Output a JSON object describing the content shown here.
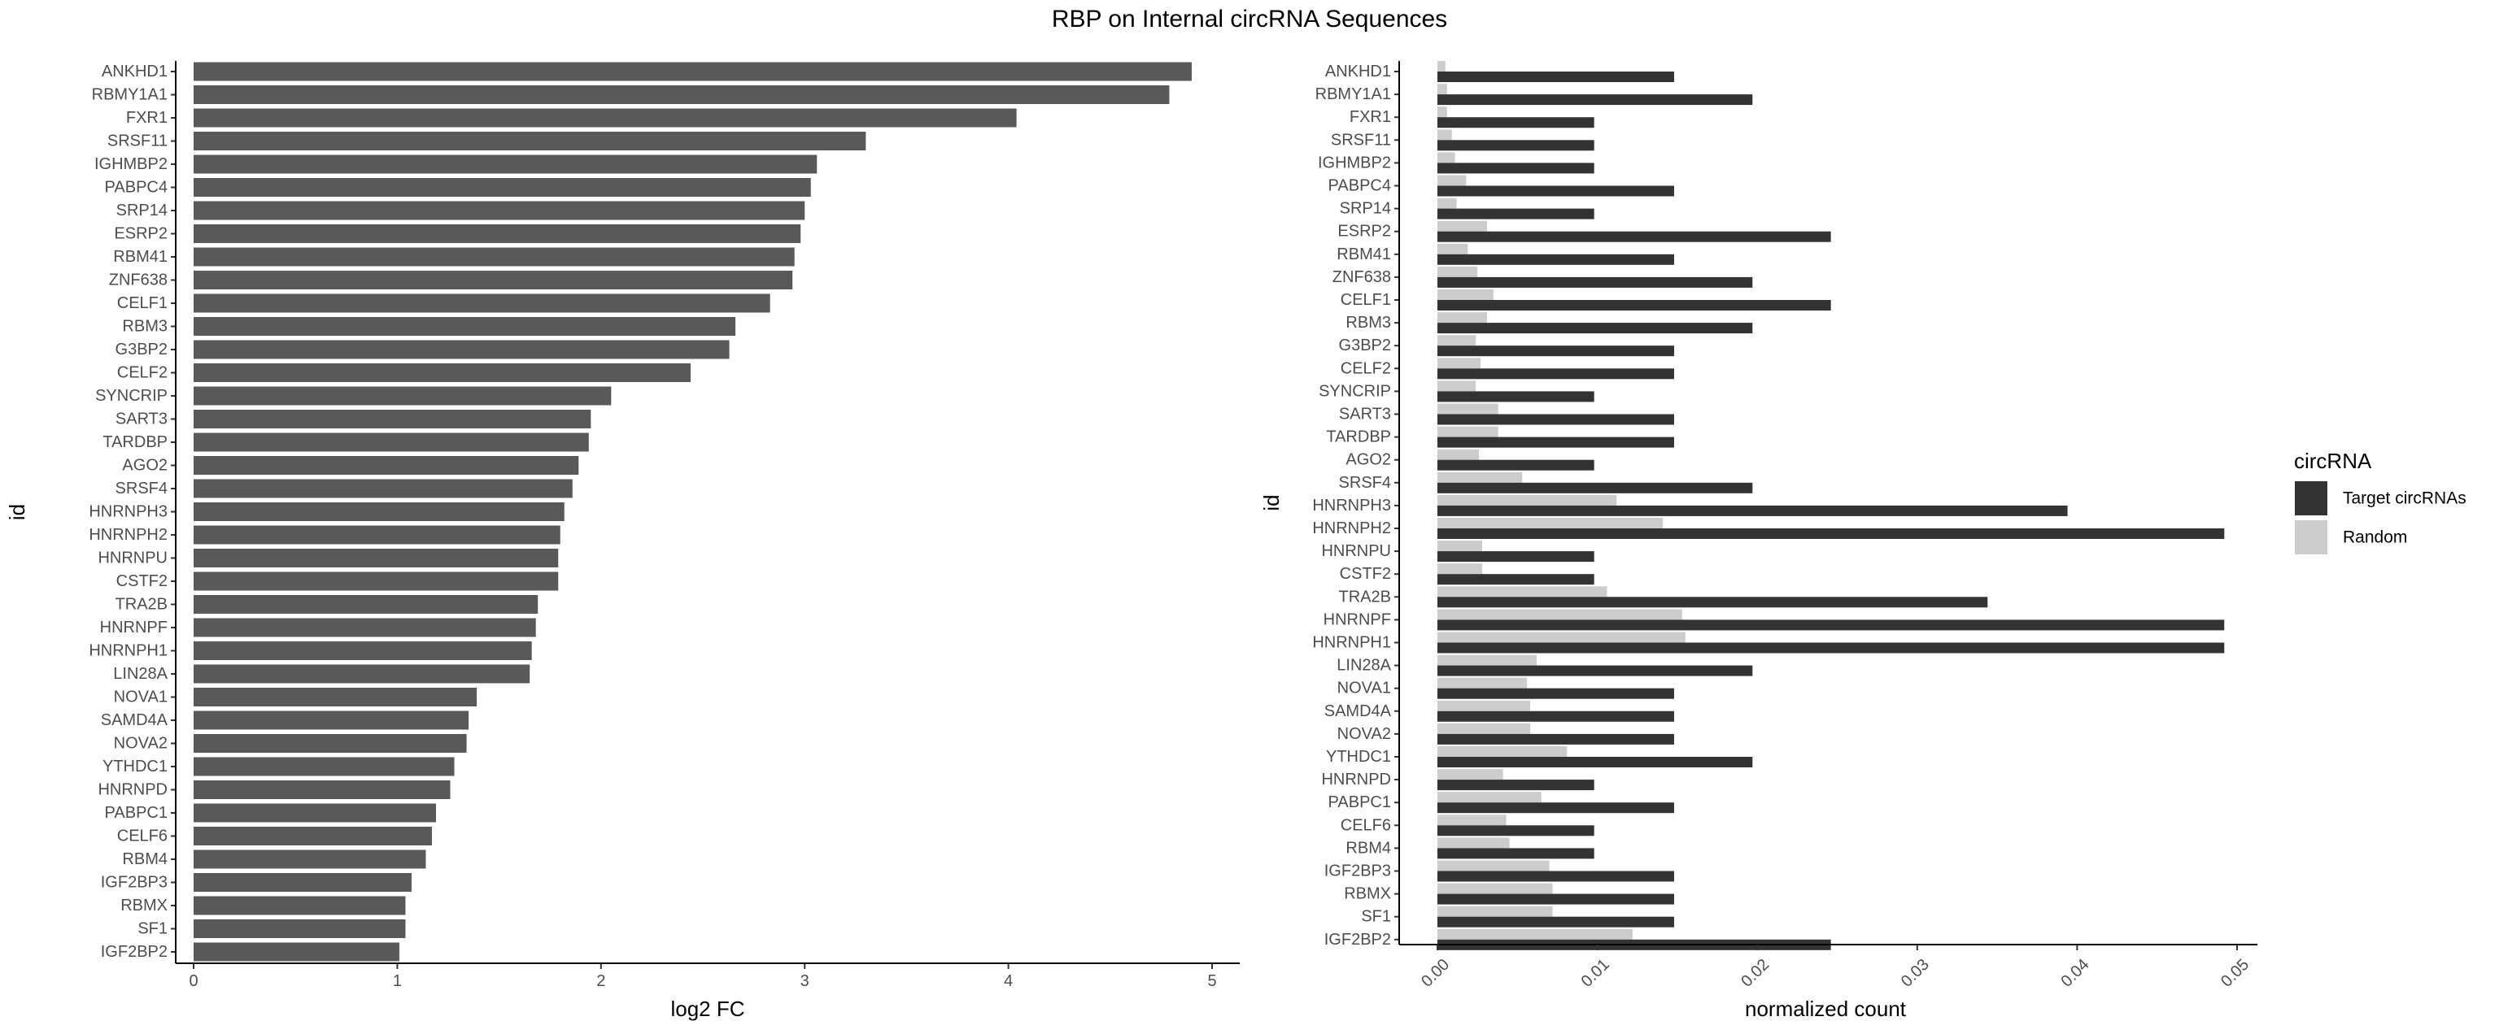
{
  "figure_title": "RBP on Internal circRNA Sequences",
  "chart_data": [
    {
      "type": "bar",
      "orientation": "horizontal",
      "title": "",
      "xlabel": "log2 FC",
      "ylabel": "id",
      "xlim": [
        0,
        5
      ],
      "x_ticks": [
        0,
        1,
        2,
        3,
        4,
        5
      ],
      "grid": false,
      "bar_color": "#595959",
      "categories": [
        "ANKHD1",
        "RBMY1A1",
        "FXR1",
        "SRSF11",
        "IGHMBP2",
        "PABPC4",
        "SRP14",
        "ESRP2",
        "RBM41",
        "ZNF638",
        "CELF1",
        "RBM3",
        "G3BP2",
        "CELF2",
        "SYNCRIP",
        "SART3",
        "TARDBP",
        "AGO2",
        "SRSF4",
        "HNRNPH3",
        "HNRNPH2",
        "HNRNPU",
        "CSTF2",
        "TRA2B",
        "HNRNPF",
        "HNRNPH1",
        "LIN28A",
        "NOVA1",
        "SAMD4A",
        "NOVA2",
        "YTHDC1",
        "HNRNPD",
        "PABPC1",
        "CELF6",
        "RBM4",
        "IGF2BP3",
        "RBMX",
        "SF1",
        "IGF2BP2"
      ],
      "values": [
        4.9,
        4.79,
        4.04,
        3.3,
        3.06,
        3.03,
        3.0,
        2.98,
        2.95,
        2.94,
        2.83,
        2.66,
        2.63,
        2.44,
        2.05,
        1.95,
        1.94,
        1.89,
        1.86,
        1.82,
        1.8,
        1.79,
        1.79,
        1.69,
        1.68,
        1.66,
        1.65,
        1.39,
        1.35,
        1.34,
        1.28,
        1.26,
        1.19,
        1.17,
        1.14,
        1.07,
        1.04,
        1.04,
        1.01
      ]
    },
    {
      "type": "bar",
      "orientation": "horizontal",
      "title": "",
      "xlabel": "normalized count",
      "ylabel": "id",
      "xlim": [
        0,
        0.05
      ],
      "x_ticks": [
        "0.00",
        "0.01",
        "0.02",
        "0.03",
        "0.04",
        "0.05"
      ],
      "grid": false,
      "legend": {
        "title": "circRNA",
        "position": "right"
      },
      "categories": [
        "ANKHD1",
        "RBMY1A1",
        "FXR1",
        "SRSF11",
        "IGHMBP2",
        "PABPC4",
        "SRP14",
        "ESRP2",
        "RBM41",
        "ZNF638",
        "CELF1",
        "RBM3",
        "G3BP2",
        "CELF2",
        "SYNCRIP",
        "SART3",
        "TARDBP",
        "AGO2",
        "SRSF4",
        "HNRNPH3",
        "HNRNPH2",
        "HNRNPU",
        "CSTF2",
        "TRA2B",
        "HNRNPF",
        "HNRNPH1",
        "LIN28A",
        "NOVA1",
        "SAMD4A",
        "NOVA2",
        "YTHDC1",
        "HNRNPD",
        "PABPC1",
        "CELF6",
        "RBM4",
        "IGF2BP3",
        "RBMX",
        "SF1",
        "IGF2BP2"
      ],
      "series": [
        {
          "name": "Target circRNAs",
          "color": "#333333",
          "values": [
            0.0148,
            0.0197,
            0.0098,
            0.0098,
            0.0098,
            0.0148,
            0.0098,
            0.0246,
            0.0148,
            0.0197,
            0.0246,
            0.0197,
            0.0148,
            0.0148,
            0.0098,
            0.0148,
            0.0148,
            0.0098,
            0.0197,
            0.0394,
            0.0492,
            0.0098,
            0.0098,
            0.0344,
            0.0492,
            0.0492,
            0.0197,
            0.0148,
            0.0148,
            0.0148,
            0.0197,
            0.0098,
            0.0148,
            0.0098,
            0.0098,
            0.0148,
            0.0148,
            0.0148,
            0.0246
          ]
        },
        {
          "name": "Random",
          "color": "#cccccc",
          "values": [
            0.0005,
            0.0006,
            0.0006,
            0.0009,
            0.0011,
            0.0018,
            0.0012,
            0.0031,
            0.0019,
            0.0025,
            0.0035,
            0.0031,
            0.0024,
            0.0027,
            0.0024,
            0.0038,
            0.0038,
            0.0026,
            0.0053,
            0.0112,
            0.0141,
            0.0028,
            0.0028,
            0.0106,
            0.0153,
            0.0155,
            0.0062,
            0.0056,
            0.0058,
            0.0058,
            0.0081,
            0.0041,
            0.0065,
            0.0043,
            0.0045,
            0.007,
            0.0072,
            0.0072,
            0.0122
          ]
        }
      ]
    }
  ]
}
